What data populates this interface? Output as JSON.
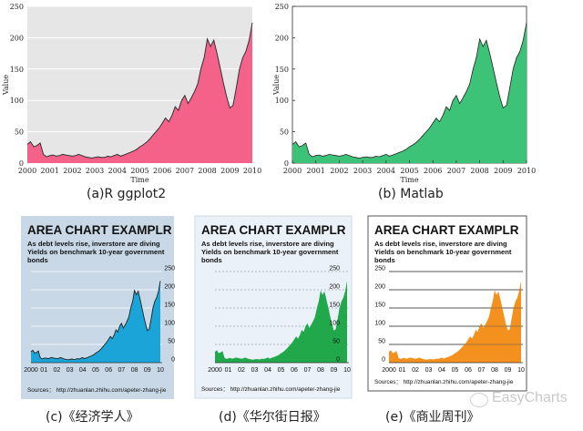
{
  "series_values": [
    30,
    34,
    26,
    28,
    32,
    14,
    10,
    12,
    13,
    11,
    12,
    14,
    13,
    12,
    11,
    12,
    14,
    12,
    10,
    9,
    8,
    9,
    10,
    9,
    9,
    11,
    10,
    12,
    14,
    11,
    13,
    15,
    17,
    19,
    22,
    26,
    29,
    33,
    38,
    44,
    50,
    56,
    64,
    72,
    66,
    76,
    90,
    84,
    100,
    108,
    95,
    104,
    114,
    126,
    150,
    168,
    198,
    186,
    196,
    175,
    152,
    128,
    106,
    88,
    92,
    120,
    150,
    168,
    178,
    196,
    224
  ],
  "shared": {
    "x_ticks_full": [
      "2000",
      "2001",
      "2002",
      "2003",
      "2004",
      "2005",
      "2006",
      "2007",
      "2008",
      "2009",
      "2010"
    ],
    "x_ticks_short": [
      "2000",
      "01",
      "02",
      "03",
      "04",
      "05",
      "06",
      "07",
      "08",
      "09",
      "10"
    ],
    "y_ticks": [
      "0",
      "50",
      "100",
      "150",
      "200",
      "250"
    ],
    "panel_title": "AREA CHART EXAMPLR",
    "panel_subtitle_1": "As debt levels rise, inverstore are diving",
    "panel_subtitle_2": "Yields on benchmark 10-year government",
    "panel_subtitle_3": "bonds",
    "source": "Sources： http://zhuanlan.zhihu.com/apeter-zhang-jie"
  },
  "captions": {
    "a": "(a)R ggplot2",
    "b": "(b) Matlab",
    "c": "(c)《经济学人》",
    "d": "(d)《华尔街日报》",
    "e": "(e)《商业周刊》"
  },
  "panels": {
    "a": {
      "xlabel": "Time",
      "ylabel": "Value",
      "fill": "#f4628a",
      "bg": "#e6e6e6",
      "style": "ggplot"
    },
    "b": {
      "xlabel": "Time",
      "ylabel": "Value",
      "fill": "#3cc377",
      "bg": "#ffffff",
      "style": "matlab"
    },
    "c": {
      "fill": "#1ba4d8",
      "bg": "#c8d8e6",
      "style": "economist"
    },
    "d": {
      "fill": "#20a84a",
      "bg": "#eaf1f8",
      "style": "wsj"
    },
    "e": {
      "fill": "#f4901e",
      "bg": "#ffffff",
      "style": "businessweek"
    }
  },
  "watermark": "EasyCharts",
  "chart_data": [
    {
      "type": "area",
      "title": "",
      "xlabel": "Time",
      "ylabel": "Value",
      "x": [
        "2000",
        "2001",
        "2002",
        "2003",
        "2004",
        "2005",
        "2006",
        "2007",
        "2008",
        "2009",
        "2010"
      ],
      "ylim": [
        0,
        250
      ],
      "series": [
        {
          "values": [
            30,
            12,
            12,
            9,
            12,
            28,
            66,
            104,
            196,
            88,
            224
          ]
        }
      ]
    },
    {
      "type": "area",
      "title": "",
      "xlabel": "Time",
      "ylabel": "Value",
      "x": [
        "2000",
        "2001",
        "2002",
        "2003",
        "2004",
        "2005",
        "2006",
        "2007",
        "2008",
        "2009",
        "2010"
      ],
      "ylim": [
        0,
        250
      ],
      "series": [
        {
          "values": [
            30,
            12,
            12,
            9,
            12,
            28,
            66,
            104,
            196,
            88,
            224
          ]
        }
      ]
    },
    {
      "type": "area",
      "title": "AREA CHART EXAMPLR",
      "x": [
        "2000",
        "01",
        "02",
        "03",
        "04",
        "05",
        "06",
        "07",
        "08",
        "09",
        "10"
      ],
      "ylim": [
        0,
        250
      ],
      "series": [
        {
          "values": [
            30,
            12,
            12,
            9,
            12,
            28,
            66,
            104,
            196,
            88,
            224
          ]
        }
      ]
    },
    {
      "type": "area",
      "title": "AREA CHART EXAMPLR",
      "x": [
        "2000",
        "01",
        "02",
        "03",
        "04",
        "05",
        "06",
        "07",
        "08",
        "09",
        "10"
      ],
      "ylim": [
        0,
        250
      ],
      "series": [
        {
          "values": [
            30,
            12,
            12,
            9,
            12,
            28,
            66,
            104,
            196,
            88,
            224
          ]
        }
      ]
    },
    {
      "type": "area",
      "title": "AREA CHART EXAMPLR",
      "x": [
        "2000",
        "01",
        "02",
        "03",
        "04",
        "05",
        "06",
        "07",
        "08",
        "09",
        "10"
      ],
      "ylim": [
        0,
        250
      ],
      "series": [
        {
          "values": [
            30,
            12,
            12,
            9,
            12,
            28,
            66,
            104,
            196,
            88,
            224
          ]
        }
      ]
    }
  ]
}
